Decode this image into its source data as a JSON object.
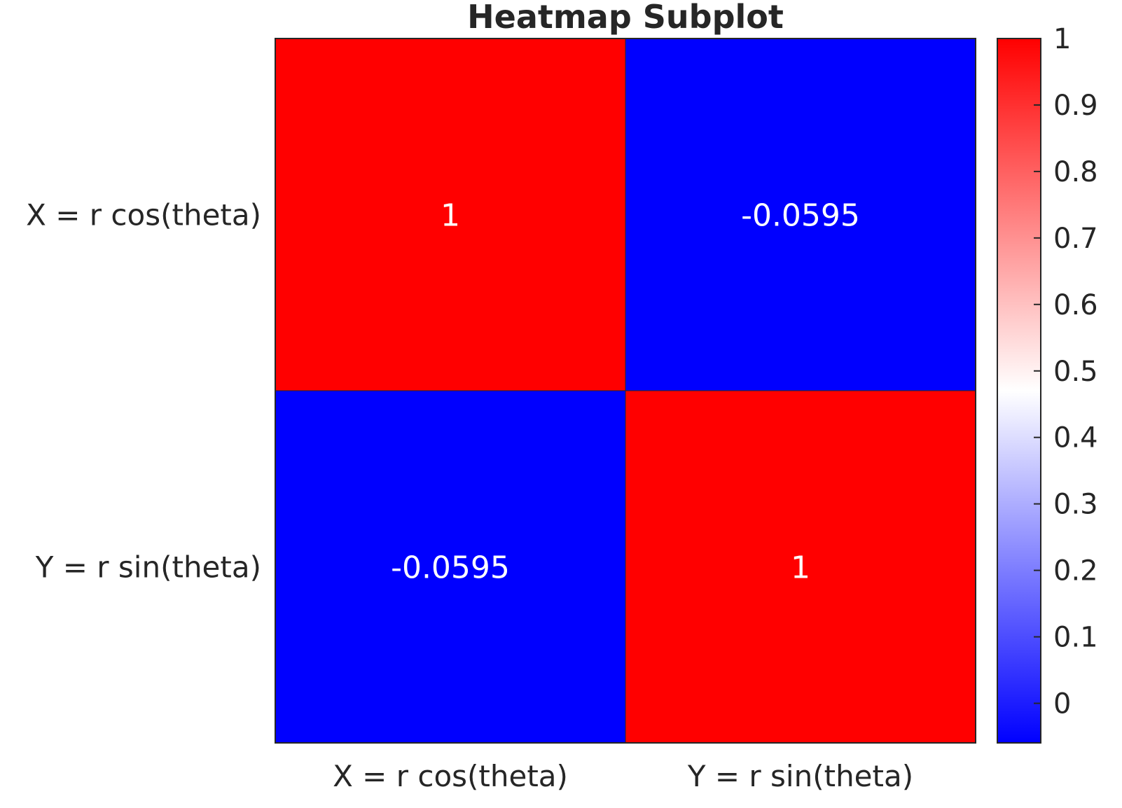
{
  "chart_data": {
    "type": "heatmap",
    "title": "Heatmap Subplot",
    "x_labels": [
      "X = r cos(theta)",
      "Y = r sin(theta)"
    ],
    "y_labels": [
      "X = r cos(theta)",
      "Y = r sin(theta)"
    ],
    "values": [
      [
        1,
        -0.0595
      ],
      [
        -0.0595,
        1
      ]
    ],
    "cell_labels": [
      [
        "1",
        "-0.0595"
      ],
      [
        "-0.0595",
        "1"
      ]
    ],
    "colorbar": {
      "min": -0.0595,
      "max": 1,
      "ticks": [
        0,
        0.1,
        0.2,
        0.3,
        0.4,
        0.5,
        0.6,
        0.7,
        0.8,
        0.9,
        1
      ],
      "tick_labels": [
        "0",
        "0.1",
        "0.2",
        "0.3",
        "0.4",
        "0.5",
        "0.6",
        "0.7",
        "0.8",
        "0.9",
        "1"
      ],
      "colormap": {
        "low": "#0000ff",
        "mid": "#ffffff",
        "high": "#ff0000"
      }
    }
  }
}
